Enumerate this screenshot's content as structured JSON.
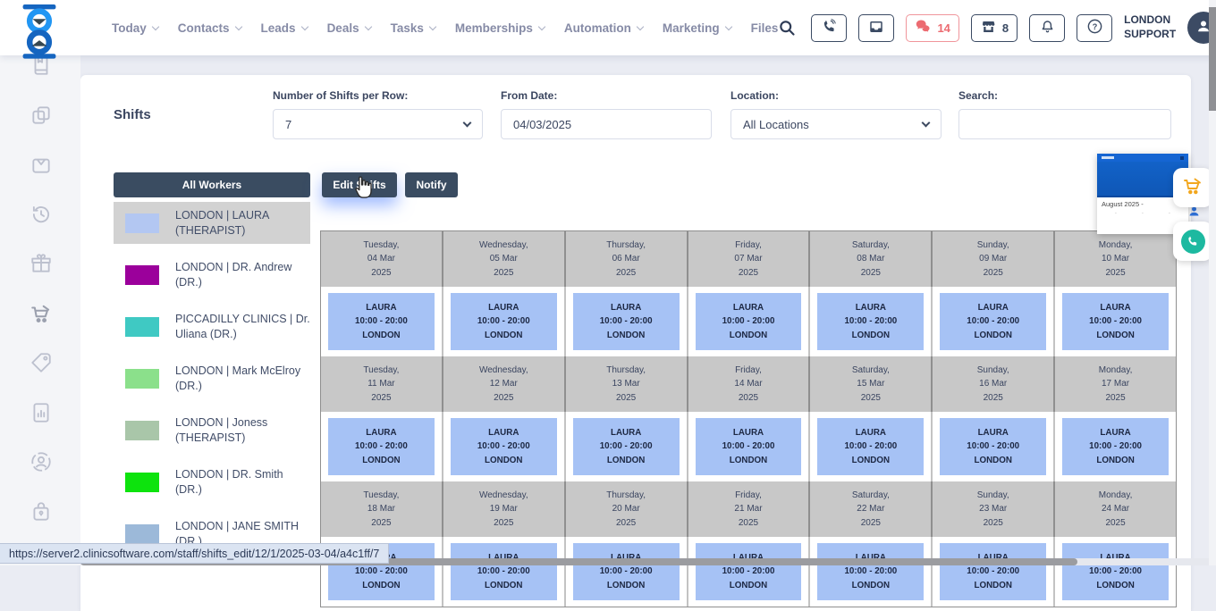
{
  "topbar": {
    "menu": [
      {
        "label": "Today",
        "chevron": true
      },
      {
        "label": "Contacts",
        "chevron": true
      },
      {
        "label": "Leads",
        "chevron": true
      },
      {
        "label": "Deals",
        "chevron": true
      },
      {
        "label": "Tasks",
        "chevron": true
      },
      {
        "label": "Memberships",
        "chevron": true
      },
      {
        "label": "Automation",
        "chevron": true
      },
      {
        "label": "Marketing",
        "chevron": true
      },
      {
        "label": "Files",
        "chevron": false
      }
    ],
    "chat_count": "14",
    "store_count": "8",
    "user_line1": "LONDON",
    "user_line2": "SUPPORT",
    "alert_color": "#ec6b71",
    "navy_color": "#3a4a63"
  },
  "sidebar": {
    "icons": [
      "book-icon",
      "copy-icon",
      "bag-icon",
      "history-icon",
      "gift-icon",
      "cart-icon",
      "tag-icon",
      "report-icon",
      "account-icon",
      "case-lock-icon"
    ]
  },
  "page": {
    "title": "Shifts",
    "filters": {
      "shifts_per_row": {
        "label": "Number of Shifts per Row:",
        "value": "7"
      },
      "from_date": {
        "label": "From Date:",
        "value": "04/03/2025"
      },
      "location": {
        "label": "Location:",
        "value": "All Locations"
      },
      "search": {
        "label": "Search:",
        "value": "",
        "placeholder": ""
      }
    },
    "toolbar": {
      "all_workers": "All Workers",
      "edit_shifts": "Edit Shifts",
      "notify": "Notify"
    }
  },
  "workers": [
    {
      "name": "LONDON | LAURA (THERAPIST)",
      "color": "#b3c7f2",
      "selected": true
    },
    {
      "name": "LONDON | DR. Andrew (DR.)",
      "color": "#9b009b",
      "selected": false
    },
    {
      "name": "PICCADILLY CLINICS | Dr. Uliana (DR.)",
      "color": "#3fc9c3",
      "selected": false
    },
    {
      "name": "LONDON | Mark McElroy (DR.)",
      "color": "#8be08b",
      "selected": false
    },
    {
      "name": "LONDON | Joness (THERAPIST)",
      "color": "#a9c6a9",
      "selected": false
    },
    {
      "name": "LONDON | DR. Smith (DR.)",
      "color": "#0de30d",
      "selected": false
    },
    {
      "name": "LONDON | JANE SMITH (DR.)",
      "color": "#9cb9d9",
      "selected": false
    }
  ],
  "calendar": {
    "shift_color": "#a6c2f5",
    "weeks": [
      {
        "days": [
          {
            "dow": "Tuesday,",
            "date": "04 Mar",
            "year": "2025"
          },
          {
            "dow": "Wednesday,",
            "date": "05 Mar",
            "year": "2025"
          },
          {
            "dow": "Thursday,",
            "date": "06 Mar",
            "year": "2025"
          },
          {
            "dow": "Friday,",
            "date": "07 Mar",
            "year": "2025"
          },
          {
            "dow": "Saturday,",
            "date": "08 Mar",
            "year": "2025"
          },
          {
            "dow": "Sunday,",
            "date": "09 Mar",
            "year": "2025"
          },
          {
            "dow": "Monday,",
            "date": "10 Mar",
            "year": "2025"
          }
        ],
        "shifts": [
          {
            "worker": "LAURA",
            "time": "10:00 - 20:00",
            "location": "LONDON"
          },
          {
            "worker": "LAURA",
            "time": "10:00 - 20:00",
            "location": "LONDON"
          },
          {
            "worker": "LAURA",
            "time": "10:00 - 20:00",
            "location": "LONDON"
          },
          {
            "worker": "LAURA",
            "time": "10:00 - 20:00",
            "location": "LONDON"
          },
          {
            "worker": "LAURA",
            "time": "10:00 - 20:00",
            "location": "LONDON"
          },
          {
            "worker": "LAURA",
            "time": "10:00 - 20:00",
            "location": "LONDON"
          },
          {
            "worker": "LAURA",
            "time": "10:00 - 20:00",
            "location": "LONDON"
          }
        ]
      },
      {
        "days": [
          {
            "dow": "Tuesday,",
            "date": "11 Mar",
            "year": "2025"
          },
          {
            "dow": "Wednesday,",
            "date": "12 Mar",
            "year": "2025"
          },
          {
            "dow": "Thursday,",
            "date": "13 Mar",
            "year": "2025"
          },
          {
            "dow": "Friday,",
            "date": "14 Mar",
            "year": "2025"
          },
          {
            "dow": "Saturday,",
            "date": "15 Mar",
            "year": "2025"
          },
          {
            "dow": "Sunday,",
            "date": "16 Mar",
            "year": "2025"
          },
          {
            "dow": "Monday,",
            "date": "17 Mar",
            "year": "2025"
          }
        ],
        "shifts": [
          {
            "worker": "LAURA",
            "time": "10:00 - 20:00",
            "location": "LONDON"
          },
          {
            "worker": "LAURA",
            "time": "10:00 - 20:00",
            "location": "LONDON"
          },
          {
            "worker": "LAURA",
            "time": "10:00 - 20:00",
            "location": "LONDON"
          },
          {
            "worker": "LAURA",
            "time": "10:00 - 20:00",
            "location": "LONDON"
          },
          {
            "worker": "LAURA",
            "time": "10:00 - 20:00",
            "location": "LONDON"
          },
          {
            "worker": "LAURA",
            "time": "10:00 - 20:00",
            "location": "LONDON"
          },
          {
            "worker": "LAURA",
            "time": "10:00 - 20:00",
            "location": "LONDON"
          }
        ]
      },
      {
        "days": [
          {
            "dow": "Tuesday,",
            "date": "18 Mar",
            "year": "2025"
          },
          {
            "dow": "Wednesday,",
            "date": "19 Mar",
            "year": "2025"
          },
          {
            "dow": "Thursday,",
            "date": "20 Mar",
            "year": "2025"
          },
          {
            "dow": "Friday,",
            "date": "21 Mar",
            "year": "2025"
          },
          {
            "dow": "Saturday,",
            "date": "22 Mar",
            "year": "2025"
          },
          {
            "dow": "Sunday,",
            "date": "23 Mar",
            "year": "2025"
          },
          {
            "dow": "Monday,",
            "date": "24 Mar",
            "year": "2025"
          }
        ],
        "shifts": [
          {
            "worker": "LAURA",
            "time": "10:00 - 20:00",
            "location": "LONDON"
          },
          {
            "worker": "LAURA",
            "time": "10:00 - 20:00",
            "location": "LONDON"
          },
          {
            "worker": "LAURA",
            "time": "10:00 - 20:00",
            "location": "LONDON"
          },
          {
            "worker": "LAURA",
            "time": "10:00 - 20:00",
            "location": "LONDON"
          },
          {
            "worker": "LAURA",
            "time": "10:00 - 20:00",
            "location": "LONDON"
          },
          {
            "worker": "LAURA",
            "time": "10:00 - 20:00",
            "location": "LONDON"
          },
          {
            "worker": "LAURA",
            "time": "10:00 - 20:00",
            "location": "LONDON"
          }
        ]
      }
    ]
  },
  "overlay": {
    "mini_calendar_title": "August 2025 -"
  },
  "statusbar": {
    "url": "https://server2.clinicsoftware.com/staff/shifts_edit/12/1/2025-03-04/a4c1ff/7"
  }
}
